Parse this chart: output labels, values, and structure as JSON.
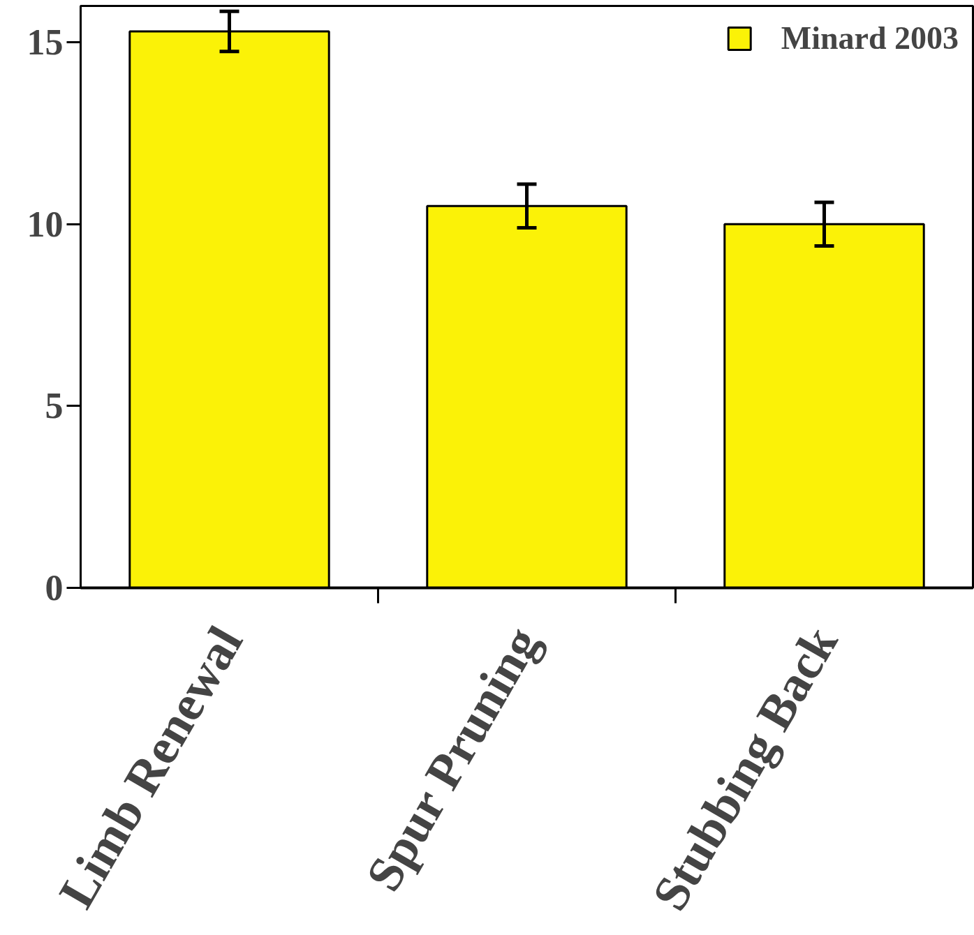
{
  "chart_data": {
    "type": "bar",
    "categories": [
      "Limb Renewal",
      "Spur Pruning",
      "Stubbing Back"
    ],
    "series": [
      {
        "name": "Minard 2003",
        "color": "#fbf207",
        "values": [
          15.3,
          10.5,
          10.0
        ],
        "errors": [
          0.55,
          0.6,
          0.6
        ]
      }
    ],
    "ylim": [
      0,
      16
    ],
    "yticks": [
      0,
      5,
      10,
      15
    ],
    "grid": false,
    "legend": "top right"
  }
}
